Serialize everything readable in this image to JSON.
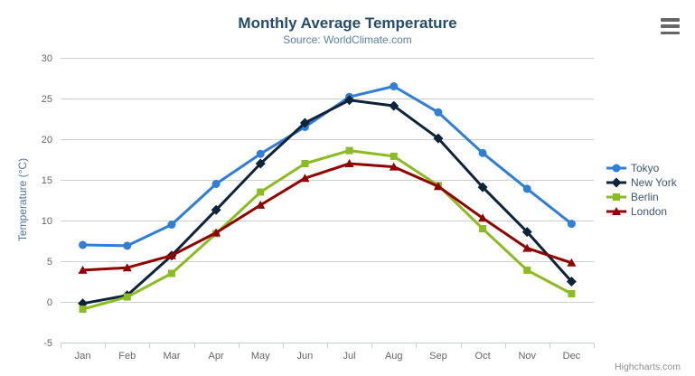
{
  "chart": {
    "credits": "Highcharts.com"
  },
  "icons": {
    "export_menu": "hamburger-menu-icon"
  },
  "chart_data": {
    "type": "line",
    "title": "Monthly Average Temperature",
    "subtitle": "Source: WorldClimate.com",
    "xlabel": "",
    "ylabel": "Temperature (°C)",
    "categories": [
      "Jan",
      "Feb",
      "Mar",
      "Apr",
      "May",
      "Jun",
      "Jul",
      "Aug",
      "Sep",
      "Oct",
      "Nov",
      "Dec"
    ],
    "series": [
      {
        "name": "Tokyo",
        "color": "#2f7ed8",
        "marker": "circle",
        "values": [
          7.0,
          6.9,
          9.5,
          14.5,
          18.2,
          21.5,
          25.2,
          26.5,
          23.3,
          18.3,
          13.9,
          9.6
        ]
      },
      {
        "name": "New York",
        "color": "#0d233a",
        "marker": "diamond",
        "values": [
          -0.2,
          0.8,
          5.7,
          11.3,
          17.0,
          22.0,
          24.8,
          24.1,
          20.1,
          14.1,
          8.6,
          2.5
        ]
      },
      {
        "name": "Berlin",
        "color": "#8bbc21",
        "marker": "square",
        "values": [
          -0.9,
          0.6,
          3.5,
          8.4,
          13.5,
          17.0,
          18.6,
          17.9,
          14.3,
          9.0,
          3.9,
          1.0
        ]
      },
      {
        "name": "London",
        "color": "#910000",
        "marker": "triangle",
        "values": [
          3.9,
          4.2,
          5.7,
          8.5,
          11.9,
          15.2,
          17.0,
          16.6,
          14.2,
          10.3,
          6.6,
          4.8
        ]
      }
    ],
    "ylim": [
      -5,
      30
    ],
    "ytick_step": 5,
    "grid": true,
    "legend_position": "right",
    "colors": {
      "gridline": "#d0d0d0",
      "axis_line": "#c0d0e0",
      "axis_label": "#666666"
    }
  }
}
